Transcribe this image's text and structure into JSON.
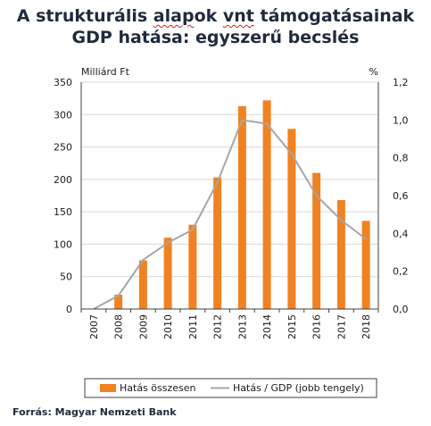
{
  "title": {
    "line1_a": "A strukturális ",
    "line1_b": "alap",
    "line1_c": "ok ",
    "line1_d": "vnt",
    "line1_e": " támogatásainak",
    "line2": "GDP hatása: egyszerű becslés"
  },
  "chart_data": {
    "type": "bar",
    "categories": [
      "2007",
      "2008",
      "2009",
      "2010",
      "2011",
      "2012",
      "2013",
      "2014",
      "2015",
      "2016",
      "2017",
      "2018"
    ],
    "series": [
      {
        "name": "Hatás összesen",
        "type": "bar",
        "axis": "left",
        "color": "#f08221",
        "values": [
          0,
          22,
          75,
          110,
          130,
          203,
          313,
          322,
          278,
          210,
          168,
          136
        ]
      },
      {
        "name": "Hatás / GDP (jobb tengely)",
        "type": "line",
        "axis": "right",
        "color": "#a6a6a6",
        "values": [
          0,
          0.07,
          0.26,
          0.35,
          0.42,
          0.67,
          1.0,
          0.98,
          0.82,
          0.6,
          0.47,
          0.37
        ]
      }
    ],
    "left_axis": {
      "label": "Milliárd Ft",
      "min": 0,
      "max": 350,
      "ticks": [
        "0",
        "50",
        "100",
        "150",
        "200",
        "250",
        "300",
        "350"
      ]
    },
    "right_axis": {
      "label": "%",
      "min": 0,
      "max": 1.2,
      "ticks": [
        "0,0",
        "0,2",
        "0,4",
        "0,6",
        "0,8",
        "1,0",
        "1,2"
      ]
    },
    "grid": true,
    "legend_position": "bottom"
  },
  "source": "Forrás: Magyar Nemzeti Bank"
}
